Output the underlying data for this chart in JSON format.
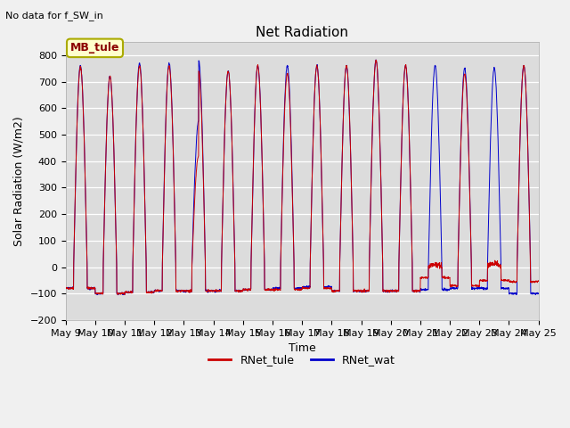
{
  "title": "Net Radiation",
  "subtitle": "No data for f_SW_in",
  "ylabel": "Solar Radiation (W/m2)",
  "xlabel": "Time",
  "ylim": [
    -200,
    850
  ],
  "yticks": [
    -200,
    -100,
    0,
    100,
    200,
    300,
    400,
    500,
    600,
    700,
    800
  ],
  "legend_label1": "RNet_tule",
  "legend_label2": "RNet_wat",
  "color1": "#cc0000",
  "color2": "#0000cc",
  "legend_box_label": "MB_tule",
  "legend_box_facecolor": "#ffffcc",
  "legend_box_edgecolor": "#aaaa00",
  "start_day": 9,
  "end_day": 24,
  "num_days": 16,
  "points_per_day": 144,
  "background_color": "#dcdcdc",
  "fig_bg_color": "#f0f0f0",
  "tick_fontsize": 8,
  "label_fontsize": 9,
  "title_fontsize": 11
}
